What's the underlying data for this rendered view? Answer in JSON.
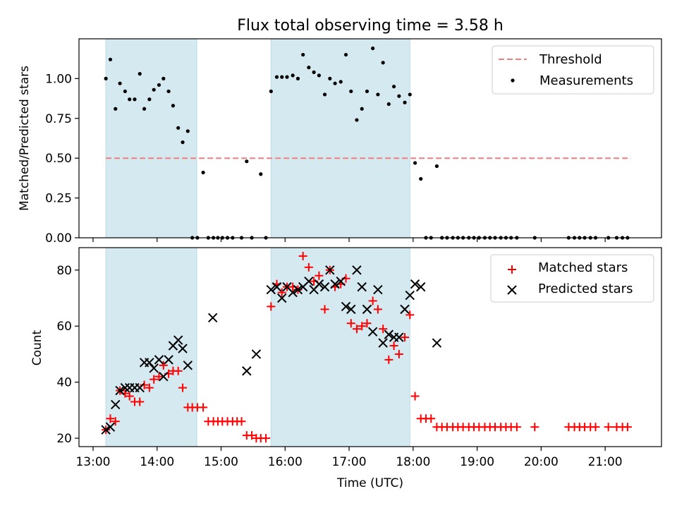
{
  "chart_data": [
    {
      "type": "scatter",
      "title": "Flux total observing time = 3.58 h",
      "xlabel": "",
      "ylabel": "Matched/Predicted stars",
      "x_unit": "hours (UTC)",
      "xlim": [
        12.78,
        21.88
      ],
      "ylim": [
        0.0,
        1.25
      ],
      "yticks": [
        0.0,
        0.25,
        0.5,
        0.75,
        1.0
      ],
      "ytick_labels": [
        "0.00",
        "0.25",
        "0.50",
        "0.75",
        "1.00"
      ],
      "legend_placement": "top-right",
      "shaded_intervals": [
        [
          13.2,
          14.62
        ],
        [
          15.78,
          17.95
        ]
      ],
      "threshold": {
        "name": "Threshold",
        "y": 0.5,
        "x_range": [
          13.2,
          21.4
        ],
        "color": "#f08080"
      },
      "series": [
        {
          "name": "Measurements",
          "color": "#000000",
          "points": [
            [
              13.2,
              1.0
            ],
            [
              13.27,
              1.12
            ],
            [
              13.35,
              0.81
            ],
            [
              13.42,
              0.97
            ],
            [
              13.5,
              0.92
            ],
            [
              13.57,
              0.87
            ],
            [
              13.65,
              0.87
            ],
            [
              13.73,
              1.03
            ],
            [
              13.8,
              0.81
            ],
            [
              13.88,
              0.87
            ],
            [
              13.95,
              0.93
            ],
            [
              14.03,
              0.96
            ],
            [
              14.1,
              1.0
            ],
            [
              14.18,
              0.92
            ],
            [
              14.25,
              0.83
            ],
            [
              14.33,
              0.69
            ],
            [
              14.4,
              0.6
            ],
            [
              14.48,
              0.67
            ],
            [
              14.55,
              0.0
            ],
            [
              14.63,
              0.0
            ],
            [
              14.72,
              0.41
            ],
            [
              14.8,
              0.0
            ],
            [
              14.88,
              0.0
            ],
            [
              14.95,
              0.0
            ],
            [
              15.02,
              0.0
            ],
            [
              15.1,
              0.0
            ],
            [
              15.18,
              0.0
            ],
            [
              15.32,
              0.0
            ],
            [
              15.4,
              0.48
            ],
            [
              15.48,
              0.0
            ],
            [
              15.62,
              0.4
            ],
            [
              15.7,
              0.0
            ],
            [
              15.78,
              0.92
            ],
            [
              15.87,
              1.01
            ],
            [
              15.95,
              1.01
            ],
            [
              16.03,
              1.01
            ],
            [
              16.12,
              1.02
            ],
            [
              16.2,
              1.0
            ],
            [
              16.28,
              1.15
            ],
            [
              16.37,
              1.07
            ],
            [
              16.45,
              1.04
            ],
            [
              16.53,
              1.02
            ],
            [
              16.62,
              0.9
            ],
            [
              16.7,
              1.0
            ],
            [
              16.78,
              0.97
            ],
            [
              16.87,
              0.98
            ],
            [
              16.95,
              1.15
            ],
            [
              17.03,
              0.92
            ],
            [
              17.12,
              0.74
            ],
            [
              17.2,
              0.81
            ],
            [
              17.28,
              0.92
            ],
            [
              17.37,
              1.19
            ],
            [
              17.45,
              0.9
            ],
            [
              17.53,
              1.1
            ],
            [
              17.62,
              0.84
            ],
            [
              17.7,
              0.95
            ],
            [
              17.78,
              0.89
            ],
            [
              17.87,
              0.85
            ],
            [
              17.95,
              0.9
            ],
            [
              18.03,
              0.47
            ],
            [
              18.12,
              0.37
            ],
            [
              18.2,
              0.0
            ],
            [
              18.28,
              0.0
            ],
            [
              18.37,
              0.45
            ],
            [
              18.45,
              0.0
            ],
            [
              18.53,
              0.0
            ],
            [
              18.62,
              0.0
            ],
            [
              18.7,
              0.0
            ],
            [
              18.78,
              0.0
            ],
            [
              18.87,
              0.0
            ],
            [
              18.95,
              0.0
            ],
            [
              19.03,
              0.0
            ],
            [
              19.12,
              0.0
            ],
            [
              19.2,
              0.0
            ],
            [
              19.28,
              0.0
            ],
            [
              19.37,
              0.0
            ],
            [
              19.45,
              0.0
            ],
            [
              19.53,
              0.0
            ],
            [
              19.62,
              0.0
            ],
            [
              19.9,
              0.0
            ],
            [
              20.43,
              0.0
            ],
            [
              20.52,
              0.0
            ],
            [
              20.6,
              0.0
            ],
            [
              20.68,
              0.0
            ],
            [
              20.77,
              0.0
            ],
            [
              20.85,
              0.0
            ],
            [
              21.05,
              0.0
            ],
            [
              21.18,
              0.0
            ],
            [
              21.27,
              0.0
            ],
            [
              21.35,
              0.0
            ]
          ]
        }
      ]
    },
    {
      "type": "scatter",
      "title": "",
      "xlabel": "Time (UTC)",
      "ylabel": "Count",
      "x_unit": "hours (UTC)",
      "xlim": [
        12.78,
        21.88
      ],
      "ylim": [
        17,
        88
      ],
      "yticks": [
        20,
        40,
        60,
        80
      ],
      "ytick_labels": [
        "20",
        "40",
        "60",
        "80"
      ],
      "xticks": [
        13,
        14,
        15,
        16,
        17,
        18,
        19,
        20,
        21
      ],
      "xtick_labels": [
        "13:00",
        "14:00",
        "15:00",
        "16:00",
        "17:00",
        "18:00",
        "19:00",
        "20:00",
        "21:00"
      ],
      "legend_placement": "top-right",
      "shaded_intervals": [
        [
          13.2,
          14.62
        ],
        [
          15.78,
          17.95
        ]
      ],
      "series": [
        {
          "name": "Matched stars",
          "marker": "plus",
          "color": "#ff0000",
          "points": [
            [
              13.2,
              23
            ],
            [
              13.27,
              27
            ],
            [
              13.35,
              26
            ],
            [
              13.42,
              37
            ],
            [
              13.5,
              36
            ],
            [
              13.57,
              35
            ],
            [
              13.65,
              33
            ],
            [
              13.73,
              33
            ],
            [
              13.8,
              39
            ],
            [
              13.88,
              38
            ],
            [
              13.95,
              41
            ],
            [
              14.03,
              42
            ],
            [
              14.1,
              46
            ],
            [
              14.18,
              43
            ],
            [
              14.25,
              44
            ],
            [
              14.33,
              44
            ],
            [
              14.4,
              38
            ],
            [
              14.48,
              31
            ],
            [
              14.55,
              31
            ],
            [
              14.63,
              31
            ],
            [
              14.72,
              31
            ],
            [
              14.8,
              26
            ],
            [
              14.88,
              26
            ],
            [
              14.95,
              26
            ],
            [
              15.02,
              26
            ],
            [
              15.1,
              26
            ],
            [
              15.18,
              26
            ],
            [
              15.25,
              26
            ],
            [
              15.32,
              26
            ],
            [
              15.4,
              21
            ],
            [
              15.48,
              21
            ],
            [
              15.55,
              20
            ],
            [
              15.62,
              20
            ],
            [
              15.7,
              20
            ],
            [
              15.78,
              67
            ],
            [
              15.87,
              75
            ],
            [
              15.95,
              72
            ],
            [
              16.03,
              74
            ],
            [
              16.12,
              74
            ],
            [
              16.2,
              73
            ],
            [
              16.28,
              85
            ],
            [
              16.37,
              81
            ],
            [
              16.45,
              76
            ],
            [
              16.53,
              78
            ],
            [
              16.62,
              66
            ],
            [
              16.7,
              80
            ],
            [
              16.78,
              74
            ],
            [
              16.87,
              75
            ],
            [
              16.95,
              77
            ],
            [
              17.03,
              61
            ],
            [
              17.12,
              59
            ],
            [
              17.2,
              60
            ],
            [
              17.28,
              61
            ],
            [
              17.37,
              69
            ],
            [
              17.45,
              66
            ],
            [
              17.53,
              59
            ],
            [
              17.62,
              48
            ],
            [
              17.7,
              53
            ],
            [
              17.78,
              50
            ],
            [
              17.87,
              56
            ],
            [
              17.95,
              64
            ],
            [
              18.03,
              35
            ],
            [
              18.12,
              27
            ],
            [
              18.2,
              27
            ],
            [
              18.28,
              27
            ],
            [
              18.37,
              24
            ],
            [
              18.45,
              24
            ],
            [
              18.53,
              24
            ],
            [
              18.62,
              24
            ],
            [
              18.7,
              24
            ],
            [
              18.78,
              24
            ],
            [
              18.87,
              24
            ],
            [
              18.95,
              24
            ],
            [
              19.03,
              24
            ],
            [
              19.12,
              24
            ],
            [
              19.2,
              24
            ],
            [
              19.28,
              24
            ],
            [
              19.37,
              24
            ],
            [
              19.45,
              24
            ],
            [
              19.53,
              24
            ],
            [
              19.62,
              24
            ],
            [
              19.9,
              24
            ],
            [
              20.43,
              24
            ],
            [
              20.52,
              24
            ],
            [
              20.6,
              24
            ],
            [
              20.68,
              24
            ],
            [
              20.77,
              24
            ],
            [
              20.85,
              24
            ],
            [
              21.05,
              24
            ],
            [
              21.18,
              24
            ],
            [
              21.27,
              24
            ],
            [
              21.35,
              24
            ]
          ]
        },
        {
          "name": "Predicted stars",
          "marker": "x",
          "color": "#000000",
          "points": [
            [
              13.2,
              23
            ],
            [
              13.27,
              24
            ],
            [
              13.35,
              32
            ],
            [
              13.42,
              37
            ],
            [
              13.5,
              38
            ],
            [
              13.57,
              38
            ],
            [
              13.65,
              38
            ],
            [
              13.73,
              38
            ],
            [
              13.8,
              47
            ],
            [
              13.88,
              47
            ],
            [
              13.95,
              45
            ],
            [
              14.03,
              48
            ],
            [
              14.1,
              42
            ],
            [
              14.18,
              48
            ],
            [
              14.25,
              53
            ],
            [
              14.33,
              55
            ],
            [
              14.4,
              52
            ],
            [
              14.48,
              46
            ],
            [
              14.87,
              63
            ],
            [
              15.4,
              44
            ],
            [
              15.55,
              50
            ],
            [
              15.78,
              73
            ],
            [
              15.87,
              74
            ],
            [
              15.95,
              70
            ],
            [
              16.03,
              74
            ],
            [
              16.12,
              72
            ],
            [
              16.2,
              73
            ],
            [
              16.28,
              74
            ],
            [
              16.37,
              76
            ],
            [
              16.45,
              73
            ],
            [
              16.53,
              75
            ],
            [
              16.62,
              74
            ],
            [
              16.7,
              80
            ],
            [
              16.78,
              75
            ],
            [
              16.87,
              76
            ],
            [
              16.95,
              67
            ],
            [
              17.03,
              66
            ],
            [
              17.12,
              80
            ],
            [
              17.2,
              74
            ],
            [
              17.28,
              66
            ],
            [
              17.37,
              58
            ],
            [
              17.45,
              73
            ],
            [
              17.53,
              54
            ],
            [
              17.62,
              57
            ],
            [
              17.7,
              56
            ],
            [
              17.78,
              56
            ],
            [
              17.87,
              66
            ],
            [
              17.95,
              71
            ],
            [
              18.03,
              75
            ],
            [
              18.12,
              74
            ],
            [
              18.37,
              54
            ]
          ]
        }
      ]
    }
  ]
}
